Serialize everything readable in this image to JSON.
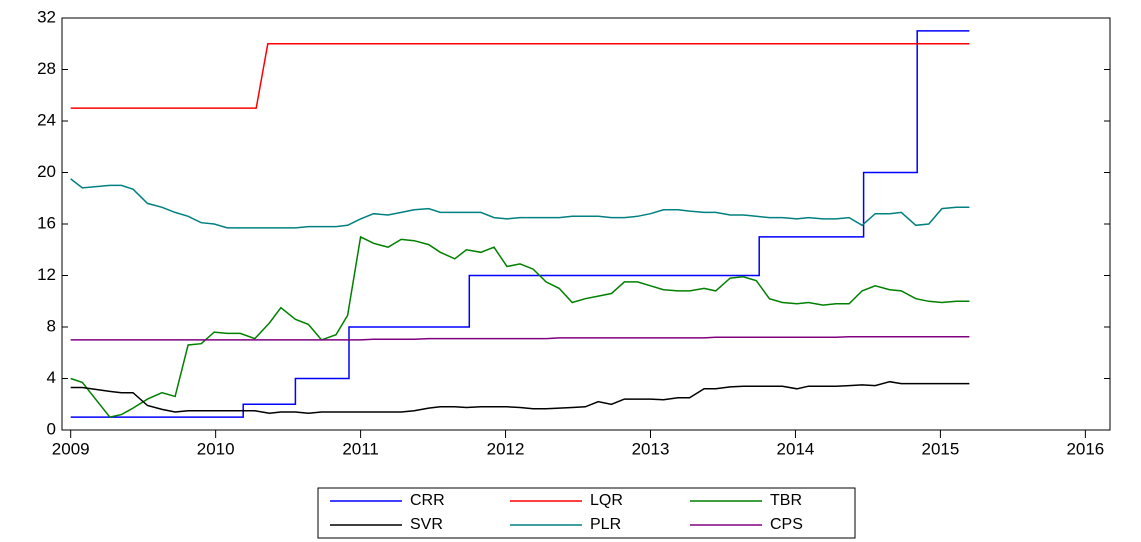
{
  "chart_data": {
    "type": "line",
    "x": [
      2009.0,
      2009.08,
      2009.27,
      2009.35,
      2009.43,
      2009.53,
      2009.63,
      2009.72,
      2009.81,
      2009.9,
      2009.99,
      2010.08,
      2010.17,
      2010.27,
      2010.37,
      2010.45,
      2010.55,
      2010.64,
      2010.73,
      2010.83,
      2010.91,
      2011.0,
      2011.09,
      2011.19,
      2011.28,
      2011.37,
      2011.47,
      2011.55,
      2011.65,
      2011.73,
      2011.83,
      2011.92,
      2012.01,
      2012.1,
      2012.19,
      2012.28,
      2012.37,
      2012.46,
      2012.55,
      2012.64,
      2012.73,
      2012.82,
      2012.91,
      2013.0,
      2013.09,
      2013.19,
      2013.27,
      2013.37,
      2013.45,
      2013.55,
      2013.64,
      2013.73,
      2013.82,
      2013.91,
      2014.01,
      2014.09,
      2014.19,
      2014.28,
      2014.37,
      2014.46,
      2014.55,
      2014.65,
      2014.73,
      2014.83,
      2014.92,
      2015.01,
      2015.11,
      2015.2
    ],
    "series": [
      {
        "name": "CRR",
        "color": "#0000ff",
        "x": [
          2009.0,
          2010.19,
          2010.19,
          2010.55,
          2010.55,
          2010.92,
          2010.92,
          2011.75,
          2011.75,
          2013.75,
          2013.75,
          2014.47,
          2014.47,
          2014.84,
          2014.84,
          2015.2
        ],
        "values": [
          1,
          1,
          2,
          2,
          4,
          4,
          8,
          8,
          12,
          12,
          15,
          15,
          20,
          20,
          31,
          31
        ]
      },
      {
        "name": "LQR",
        "color": "#ff0000",
        "x": [
          2009.0,
          2010.28,
          2010.36,
          2015.2
        ],
        "values": [
          25,
          25,
          30,
          30
        ]
      },
      {
        "name": "TBR",
        "color": "#008000",
        "values": [
          4.0,
          3.7,
          1.0,
          1.2,
          1.7,
          2.4,
          2.9,
          2.6,
          6.6,
          6.7,
          7.6,
          7.5,
          7.5,
          7.1,
          8.3,
          9.5,
          8.6,
          8.2,
          7.0,
          7.4,
          8.9,
          15.0,
          14.5,
          14.2,
          14.8,
          14.7,
          14.4,
          13.8,
          13.3,
          14.0,
          13.8,
          14.2,
          12.7,
          12.9,
          12.5,
          11.5,
          11.0,
          9.9,
          10.2,
          10.4,
          10.6,
          11.5,
          11.5,
          11.2,
          10.9,
          10.8,
          10.8,
          11.0,
          10.8,
          11.8,
          11.9,
          11.6,
          10.2,
          9.9,
          9.8,
          9.9,
          9.7,
          9.8,
          9.8,
          10.8,
          11.2,
          10.9,
          10.8,
          10.2,
          10.0,
          9.9,
          10.0,
          10.0
        ]
      },
      {
        "name": "SVR",
        "color": "#000000",
        "values": [
          3.3,
          3.3,
          3.0,
          2.9,
          2.9,
          1.9,
          1.6,
          1.4,
          1.5,
          1.5,
          1.5,
          1.5,
          1.5,
          1.5,
          1.3,
          1.4,
          1.4,
          1.3,
          1.4,
          1.4,
          1.4,
          1.4,
          1.4,
          1.4,
          1.4,
          1.5,
          1.7,
          1.8,
          1.8,
          1.75,
          1.8,
          1.8,
          1.8,
          1.75,
          1.65,
          1.65,
          1.7,
          1.75,
          1.8,
          2.2,
          2.0,
          2.4,
          2.4,
          2.4,
          2.35,
          2.5,
          2.5,
          3.2,
          3.2,
          3.35,
          3.4,
          3.4,
          3.4,
          3.4,
          3.2,
          3.4,
          3.4,
          3.4,
          3.45,
          3.5,
          3.45,
          3.75,
          3.6,
          3.6,
          3.6,
          3.6,
          3.6,
          3.6
        ]
      },
      {
        "name": "PLR",
        "color": "#008080",
        "values": [
          19.5,
          18.8,
          19.0,
          19.0,
          18.7,
          17.6,
          17.3,
          16.9,
          16.6,
          16.1,
          16.0,
          15.7,
          15.7,
          15.7,
          15.7,
          15.7,
          15.7,
          15.8,
          15.8,
          15.8,
          15.9,
          16.4,
          16.8,
          16.7,
          16.9,
          17.1,
          17.2,
          16.9,
          16.9,
          16.9,
          16.9,
          16.5,
          16.4,
          16.5,
          16.5,
          16.5,
          16.5,
          16.6,
          16.6,
          16.6,
          16.5,
          16.5,
          16.6,
          16.8,
          17.1,
          17.1,
          17.0,
          16.9,
          16.9,
          16.7,
          16.7,
          16.6,
          16.5,
          16.5,
          16.4,
          16.5,
          16.4,
          16.4,
          16.5,
          15.9,
          16.8,
          16.8,
          16.9,
          15.9,
          16.0,
          17.2,
          17.3,
          17.3
        ]
      },
      {
        "name": "CPS",
        "color": "#800080",
        "values": [
          7.0,
          7.0,
          7.0,
          7.0,
          7.0,
          7.0,
          7.0,
          7.0,
          7.0,
          7.0,
          7.0,
          7.0,
          7.0,
          7.0,
          7.0,
          7.0,
          7.0,
          7.0,
          7.0,
          7.0,
          7.0,
          7.0,
          7.05,
          7.05,
          7.05,
          7.05,
          7.1,
          7.1,
          7.1,
          7.1,
          7.1,
          7.1,
          7.1,
          7.1,
          7.1,
          7.1,
          7.15,
          7.15,
          7.15,
          7.15,
          7.15,
          7.15,
          7.15,
          7.15,
          7.15,
          7.15,
          7.15,
          7.15,
          7.2,
          7.2,
          7.2,
          7.2,
          7.2,
          7.2,
          7.2,
          7.2,
          7.2,
          7.2,
          7.25,
          7.25,
          7.25,
          7.25,
          7.25,
          7.25,
          7.25,
          7.25,
          7.25,
          7.25
        ]
      }
    ],
    "xlim": [
      2008.94,
      2016.17
    ],
    "xticks": [
      2009,
      2010,
      2011,
      2012,
      2013,
      2014,
      2015,
      2016
    ],
    "ylim": [
      0,
      32
    ],
    "yticks": [
      0,
      4,
      8,
      12,
      16,
      20,
      24,
      28,
      32
    ],
    "grid": false,
    "legend": "bottom"
  }
}
